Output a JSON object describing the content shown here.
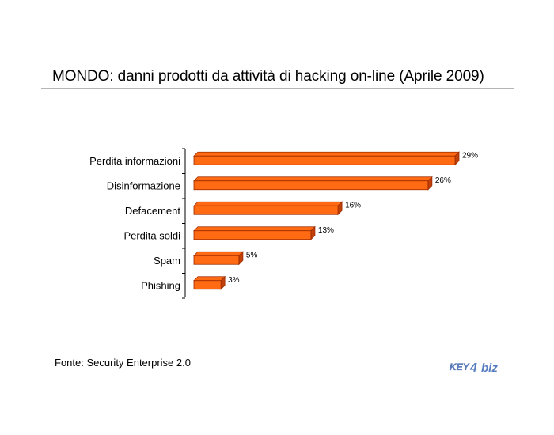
{
  "title": "MONDO: danni prodotti da attività di hacking on-line (Aprile 2009)",
  "source": "Fonte: Security Enterprise 2.0",
  "logo": {
    "text": "KEY4biz",
    "color": "#5a7fc0"
  },
  "chart_data": {
    "type": "bar",
    "orientation": "horizontal",
    "categories": [
      "Perdita informazioni",
      "Disinformazione",
      "Defacement",
      "Perdita soldi",
      "Spam",
      "Phishing"
    ],
    "values": [
      29,
      26,
      16,
      13,
      5,
      3
    ],
    "value_labels": [
      "29%",
      "26%",
      "16%",
      "13%",
      "5%",
      "3%"
    ],
    "unit": "%",
    "bar_color": "#ff6a13",
    "bar_edge_color": "#9a2a00",
    "xlim": [
      0,
      29
    ],
    "grid": false,
    "legend": false
  }
}
